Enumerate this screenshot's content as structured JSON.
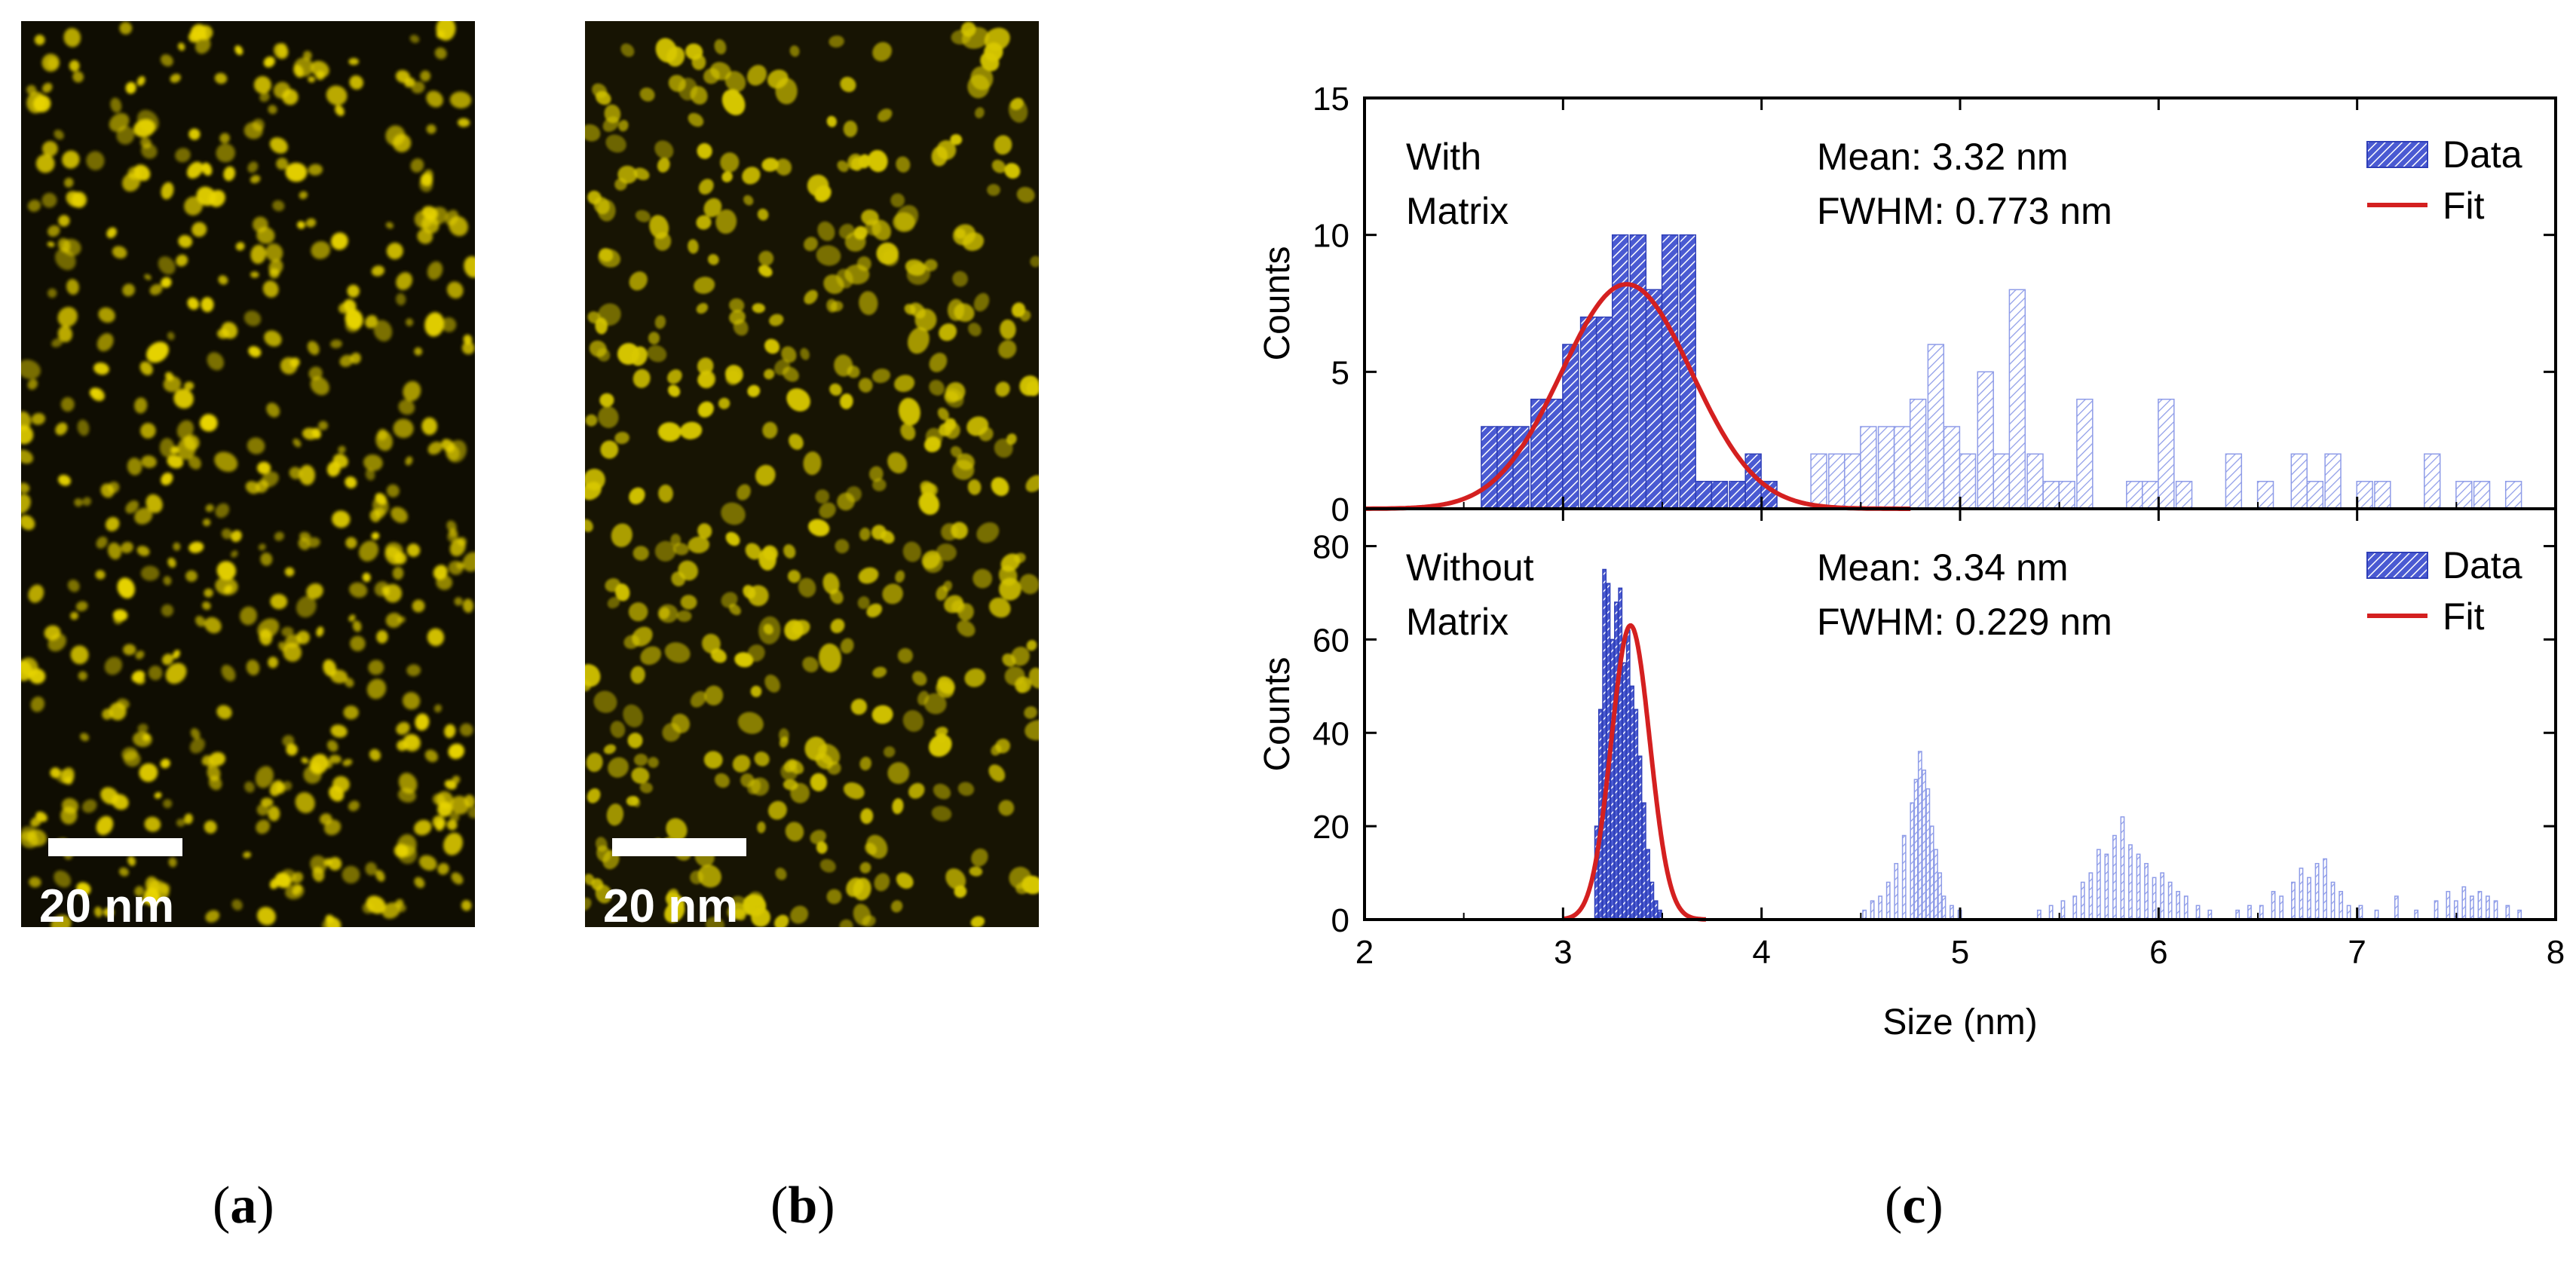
{
  "panels": {
    "a": {
      "label": "a",
      "scale_bar": "20 nm"
    },
    "b": {
      "label": "b",
      "scale_bar": "20 nm"
    },
    "c": {
      "label": "c"
    }
  },
  "colors": {
    "bar_primary": "#3a4cc8",
    "bar_secondary": "#9aa8ee",
    "fit": "#d42020",
    "dots_a": "#e8d400",
    "dots_b": "#d8c800"
  },
  "chart_data": [
    {
      "type": "bar",
      "panel": "top",
      "title": "",
      "xlabel": "Size (nm)",
      "ylabel": "Counts",
      "xlim": [
        2,
        8
      ],
      "ylim": [
        0,
        15
      ],
      "xticks": [
        2,
        3,
        4,
        5,
        6,
        7,
        8
      ],
      "yticks": [
        0,
        5,
        10,
        15
      ],
      "sample_label": [
        "With",
        "Matrix"
      ],
      "stats": [
        "Mean: 3.32 nm",
        "FWHM: 0.773 nm"
      ],
      "legend": [
        "Data",
        "Fit"
      ],
      "bin_width": 0.0833,
      "x": [
        2.63,
        2.71,
        2.79,
        2.88,
        2.96,
        3.04,
        3.13,
        3.21,
        3.29,
        3.38,
        3.46,
        3.54,
        3.63,
        3.71,
        3.79,
        3.88,
        3.96,
        4.04,
        4.29,
        4.38,
        4.46,
        4.54,
        4.63,
        4.71,
        4.79,
        4.88,
        4.96,
        5.04,
        5.13,
        5.21,
        5.29,
        5.38,
        5.46,
        5.54,
        5.63,
        5.88,
        5.96,
        6.04,
        6.13,
        6.38,
        6.54,
        6.71,
        6.79,
        6.88,
        7.04,
        7.13,
        7.38,
        7.54,
        7.63,
        7.79
      ],
      "values": [
        3,
        3,
        3,
        4,
        4,
        6,
        7,
        7,
        10,
        10,
        8,
        10,
        10,
        1,
        1,
        1,
        2,
        1,
        2,
        2,
        2,
        3,
        3,
        3,
        4,
        6,
        3,
        2,
        5,
        2,
        8,
        2,
        1,
        1,
        4,
        1,
        1,
        4,
        1,
        2,
        1,
        2,
        1,
        2,
        1,
        1,
        2,
        1,
        1,
        1
      ],
      "series_split_index": 18,
      "fit": {
        "mean": 3.32,
        "fwhm": 0.773,
        "amplitude": 8.2,
        "x_range": [
          2.0,
          4.75
        ]
      }
    },
    {
      "type": "bar",
      "panel": "bottom",
      "title": "",
      "xlabel": "Size (nm)",
      "ylabel": "Counts",
      "xlim": [
        2,
        8
      ],
      "ylim": [
        0,
        88
      ],
      "xticks": [
        2,
        3,
        4,
        5,
        6,
        7,
        8
      ],
      "yticks": [
        0,
        20,
        40,
        60,
        80
      ],
      "sample_label": [
        "Without",
        "Matrix"
      ],
      "stats": [
        "Mean: 3.34 nm",
        "FWHM: 0.229 nm"
      ],
      "legend": [
        "Data",
        "Fit"
      ],
      "bin_width": 0.02,
      "x": [
        3.17,
        3.19,
        3.21,
        3.23,
        3.25,
        3.27,
        3.29,
        3.31,
        3.33,
        3.35,
        3.37,
        3.39,
        3.41,
        3.43,
        3.45,
        3.47,
        3.49,
        4.52,
        4.56,
        4.6,
        4.64,
        4.68,
        4.72,
        4.76,
        4.78,
        4.8,
        4.82,
        4.84,
        4.86,
        4.88,
        4.9,
        4.92,
        4.96,
        5.0,
        5.4,
        5.46,
        5.52,
        5.58,
        5.62,
        5.66,
        5.7,
        5.74,
        5.78,
        5.82,
        5.86,
        5.9,
        5.94,
        5.98,
        6.02,
        6.06,
        6.1,
        6.14,
        6.2,
        6.26,
        6.4,
        6.46,
        6.52,
        6.58,
        6.62,
        6.68,
        6.72,
        6.76,
        6.8,
        6.84,
        6.88,
        6.92,
        6.96,
        7.02,
        7.1,
        7.2,
        7.3,
        7.4,
        7.46,
        7.5,
        7.54,
        7.58,
        7.62,
        7.66,
        7.7,
        7.76,
        7.82
      ],
      "values": [
        20,
        45,
        75,
        72,
        60,
        68,
        71,
        55,
        62,
        50,
        45,
        35,
        25,
        15,
        8,
        4,
        2,
        2,
        4,
        5,
        8,
        12,
        18,
        25,
        30,
        36,
        32,
        28,
        20,
        15,
        10,
        5,
        3,
        2,
        2,
        3,
        4,
        5,
        8,
        10,
        15,
        14,
        18,
        22,
        16,
        14,
        12,
        9,
        10,
        8,
        6,
        5,
        3,
        2,
        2,
        3,
        3,
        6,
        5,
        8,
        11,
        9,
        12,
        13,
        8,
        6,
        3,
        3,
        2,
        5,
        2,
        4,
        6,
        4,
        7,
        5,
        6,
        5,
        4,
        3,
        2
      ],
      "series_split_index": 17,
      "fit": {
        "mean": 3.34,
        "fwhm": 0.229,
        "amplitude": 63,
        "x_range": [
          3.0,
          3.72
        ]
      }
    }
  ]
}
